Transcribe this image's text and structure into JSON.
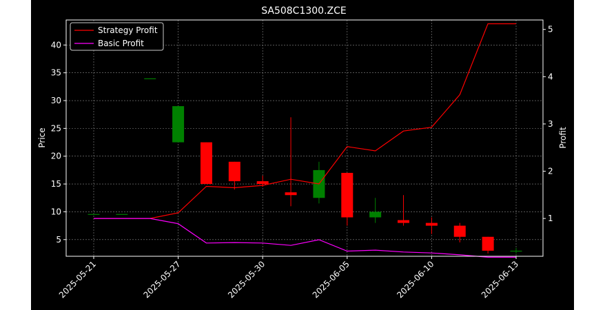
{
  "chart_data": {
    "type": "candlestick+line",
    "title": "SA508C1300.ZCE",
    "ylabel_left": "Price",
    "ylabel_right": "Profit",
    "xlabel": "",
    "grid": true,
    "legend_position": "top-left",
    "colors": {
      "background": "#000000",
      "up": "#008000",
      "down": "#ff0000",
      "strategy_line": "#ff0000",
      "basic_line": "#ff00ff",
      "grid": "#8c8c8c",
      "axis": "#ffffff"
    },
    "x_tick_labels": [
      "2025-05-21",
      "2025-05-27",
      "2025-05-30",
      "2025-06-05",
      "2025-06-10",
      "2025-06-13"
    ],
    "x_tick_index": [
      0,
      3,
      6,
      9,
      12,
      15
    ],
    "y_left_ticks": [
      5,
      10,
      15,
      20,
      25,
      30,
      35,
      40
    ],
    "y_left_range": [
      2,
      44.5
    ],
    "y_right_ticks": [
      1,
      2,
      3,
      4,
      5
    ],
    "y_right_range": [
      0.2,
      5.2
    ],
    "candles": [
      {
        "open": 9.6,
        "high": 9.6,
        "low": 9.6,
        "close": 9.6
      },
      {
        "open": 9.6,
        "high": 9.6,
        "low": 9.6,
        "close": 9.6
      },
      {
        "open": 34.0,
        "high": 34.0,
        "low": 34.0,
        "close": 34.0
      },
      {
        "open": 22.5,
        "high": 29.0,
        "low": 22.5,
        "close": 29.0
      },
      {
        "open": 22.5,
        "high": 22.5,
        "low": 15.0,
        "close": 15.0
      },
      {
        "open": 19.0,
        "high": 19.0,
        "low": 14.0,
        "close": 15.5
      },
      {
        "open": 15.5,
        "high": 16.5,
        "low": 14.5,
        "close": 15.0
      },
      {
        "open": 13.5,
        "high": 27.0,
        "low": 11.0,
        "close": 13.0
      },
      {
        "open": 12.5,
        "high": 19.0,
        "low": 11.5,
        "close": 17.5
      },
      {
        "open": 17.0,
        "high": 17.0,
        "low": 7.5,
        "close": 9.0
      },
      {
        "open": 9.0,
        "high": 12.5,
        "low": 8.0,
        "close": 10.0
      },
      {
        "open": 8.5,
        "high": 13.0,
        "low": 7.5,
        "close": 8.0
      },
      {
        "open": 8.0,
        "high": 9.0,
        "low": 6.0,
        "close": 7.5
      },
      {
        "open": 7.5,
        "high": 8.0,
        "low": 4.5,
        "close": 5.5
      },
      {
        "open": 5.5,
        "high": 5.5,
        "low": 2.5,
        "close": 3.0
      },
      {
        "open": 3.0,
        "high": 3.5,
        "low": 2.5,
        "close": 3.0
      }
    ],
    "series": [
      {
        "name": "Strategy Profit",
        "values": [
          1.0,
          1.0,
          1.0,
          1.12,
          1.68,
          1.65,
          1.7,
          1.83,
          1.73,
          2.52,
          2.43,
          2.85,
          2.93,
          3.62,
          5.12,
          5.12
        ]
      },
      {
        "name": "Basic Profit",
        "values": [
          1.0,
          1.0,
          1.0,
          0.89,
          0.48,
          0.49,
          0.48,
          0.43,
          0.55,
          0.31,
          0.33,
          0.29,
          0.27,
          0.23,
          0.18,
          0.18
        ]
      }
    ]
  }
}
